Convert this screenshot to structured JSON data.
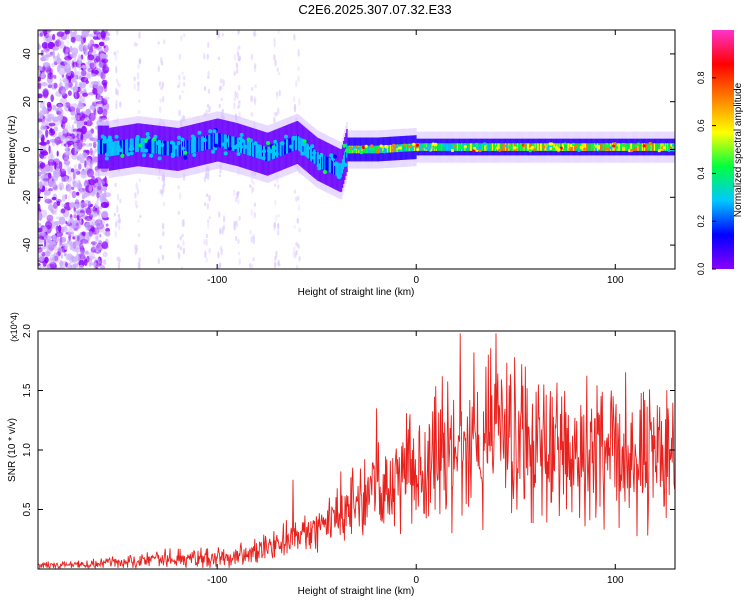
{
  "title": "C2E6.2025.307.07.32.E33",
  "colors": {
    "snr_line": "#e8211d",
    "colorbar_stops": [
      "#8a00ff",
      "#0000ff",
      "#00c8ff",
      "#00ff40",
      "#ffff00",
      "#ff8000",
      "#ff0000",
      "#ff33cc"
    ]
  },
  "chart_data": [
    {
      "type": "heatmap",
      "name": "spectrogram",
      "xlabel": "Height of straight line (km)",
      "ylabel": "Frequency (Hz)",
      "xlim": [
        -190,
        130
      ],
      "ylim": [
        -50,
        50
      ],
      "xticks": [
        -100,
        0,
        100
      ],
      "yticks": [
        -40,
        -20,
        0,
        20,
        40
      ],
      "colorbar": {
        "label": "Normalized spectral amplitude",
        "range": [
          0,
          1
        ],
        "ticks": [
          0,
          0.2,
          0.4,
          0.6,
          0.8
        ]
      },
      "ridge": [
        {
          "x": -155,
          "y": 0
        },
        {
          "x": -140,
          "y": 2
        },
        {
          "x": -120,
          "y": 0
        },
        {
          "x": -100,
          "y": 4
        },
        {
          "x": -90,
          "y": 2
        },
        {
          "x": -75,
          "y": -2
        },
        {
          "x": -60,
          "y": 3
        },
        {
          "x": -50,
          "y": -4
        },
        {
          "x": -38,
          "y": -9
        },
        {
          "x": -35,
          "y": 0
        },
        {
          "x": -20,
          "y": 0
        },
        {
          "x": 0,
          "y": 1
        },
        {
          "x": 50,
          "y": 1
        },
        {
          "x": 100,
          "y": 1
        },
        {
          "x": 130,
          "y": 1
        }
      ]
    },
    {
      "type": "line",
      "name": "snr",
      "xlabel": "Height of straight line (km)",
      "ylabel": "SNR (10 * v/v)",
      "yscale_label": "(x10^4)",
      "xlim": [
        -190,
        130
      ],
      "ylim": [
        0,
        2.0
      ],
      "xticks": [
        -100,
        0,
        100
      ],
      "yticks": [
        0.5,
        1.0,
        1.5,
        2.0
      ],
      "ytick_labels": [
        "0.5",
        "1.0",
        "1.5",
        "2.0"
      ],
      "series": [
        {
          "name": "SNR",
          "points": [
            {
              "x": -190,
              "y": 0.03
            },
            {
              "x": -160,
              "y": 0.04
            },
            {
              "x": -130,
              "y": 0.08
            },
            {
              "x": -100,
              "y": 0.09
            },
            {
              "x": -85,
              "y": 0.12
            },
            {
              "x": -75,
              "y": 0.2
            },
            {
              "x": -60,
              "y": 0.28
            },
            {
              "x": -45,
              "y": 0.35
            },
            {
              "x": -30,
              "y": 0.55
            },
            {
              "x": -15,
              "y": 0.72
            },
            {
              "x": 0,
              "y": 0.85
            },
            {
              "x": 15,
              "y": 1.0
            },
            {
              "x": 30,
              "y": 1.05
            },
            {
              "x": 45,
              "y": 1.1
            },
            {
              "x": 60,
              "y": 1.0
            },
            {
              "x": 80,
              "y": 1.02
            },
            {
              "x": 100,
              "y": 0.98
            },
            {
              "x": 115,
              "y": 0.92
            },
            {
              "x": 130,
              "y": 0.9
            }
          ],
          "peaks": [
            {
              "x": -62,
              "y": 0.75
            },
            {
              "x": -38,
              "y": 0.82
            },
            {
              "x": -20,
              "y": 1.35
            },
            {
              "x": -3,
              "y": 1.3
            },
            {
              "x": 13,
              "y": 1.62
            },
            {
              "x": 22,
              "y": 1.98
            },
            {
              "x": 29,
              "y": 1.82
            },
            {
              "x": 35,
              "y": 1.7
            },
            {
              "x": 40,
              "y": 1.98
            },
            {
              "x": 53,
              "y": 1.72
            },
            {
              "x": 64,
              "y": 1.55
            },
            {
              "x": 73,
              "y": 1.45
            },
            {
              "x": 98,
              "y": 1.5
            },
            {
              "x": 120,
              "y": 1.12
            }
          ]
        }
      ]
    }
  ]
}
